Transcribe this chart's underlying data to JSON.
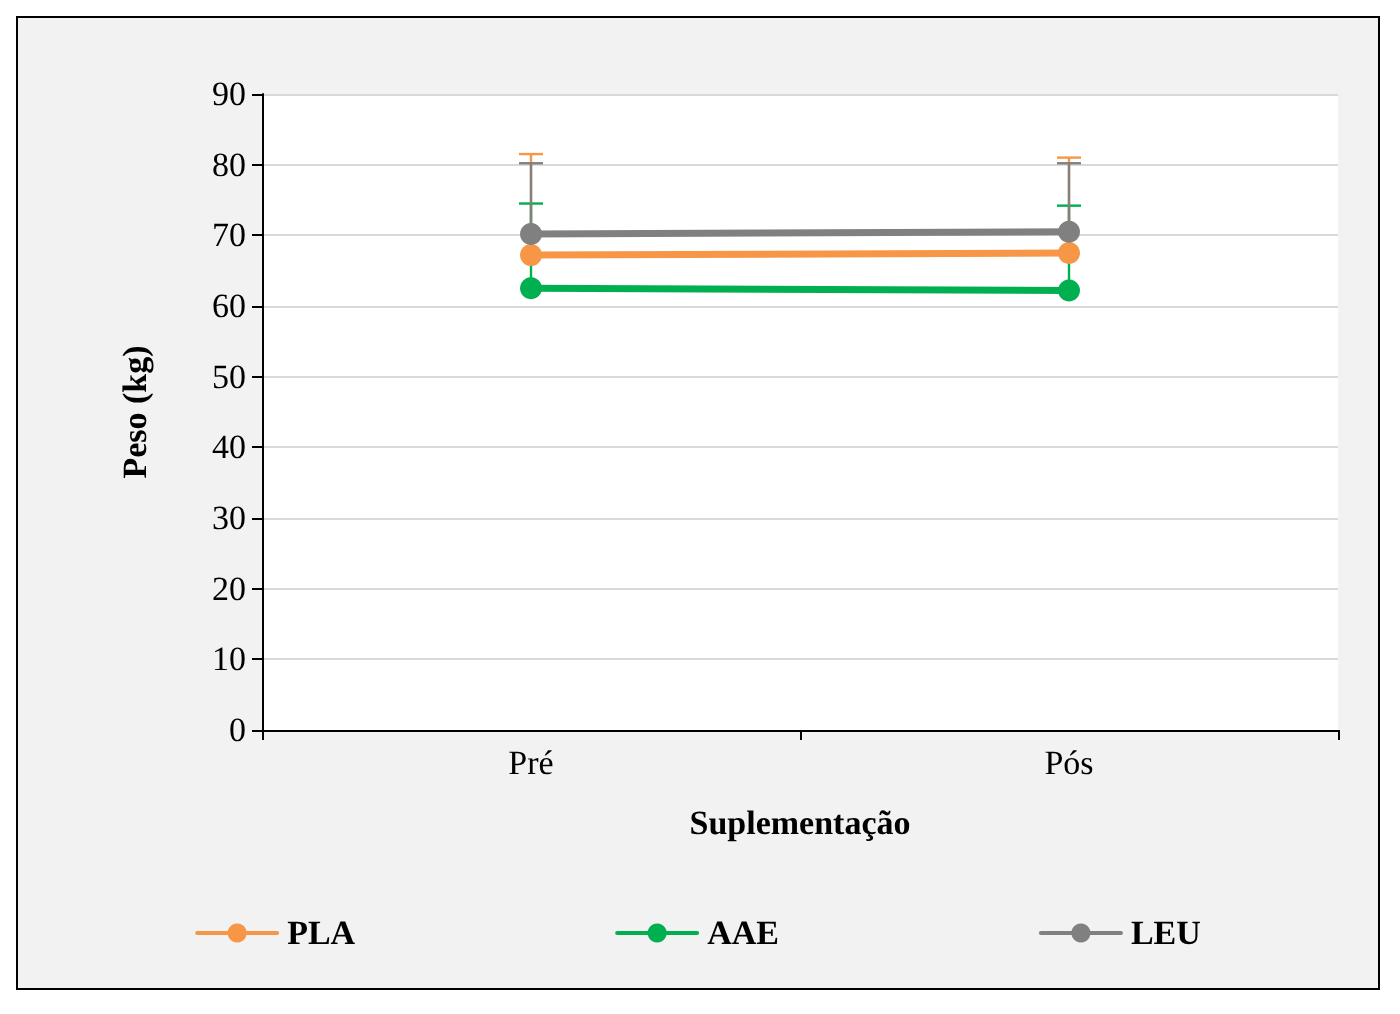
{
  "chart_data": {
    "type": "line",
    "xlabel": "Suplementação",
    "ylabel": "Peso (kg)",
    "categories": [
      "Pré",
      "Pós"
    ],
    "series": [
      {
        "name": "PLA",
        "color": "#f79646",
        "values": [
          67.2,
          67.5
        ],
        "errors": [
          [
            67.2,
            81.5
          ],
          [
            67.5,
            81.0
          ]
        ]
      },
      {
        "name": "AAE",
        "color": "#00b050",
        "values": [
          62.5,
          62.2
        ],
        "errors": [
          [
            62.5,
            74.5
          ],
          [
            62.2,
            74.2
          ]
        ]
      },
      {
        "name": "LEU",
        "color": "#808080",
        "values": [
          70.2,
          70.5
        ],
        "errors": [
          [
            70.2,
            80.2
          ],
          [
            70.5,
            80.2
          ]
        ]
      }
    ],
    "ylim": [
      0,
      90
    ],
    "yticks": [
      0,
      10,
      20,
      30,
      40,
      50,
      60,
      70,
      80,
      90
    ],
    "grid": "y",
    "legend": "bottom",
    "marker": "circle",
    "line_style": "solid"
  }
}
